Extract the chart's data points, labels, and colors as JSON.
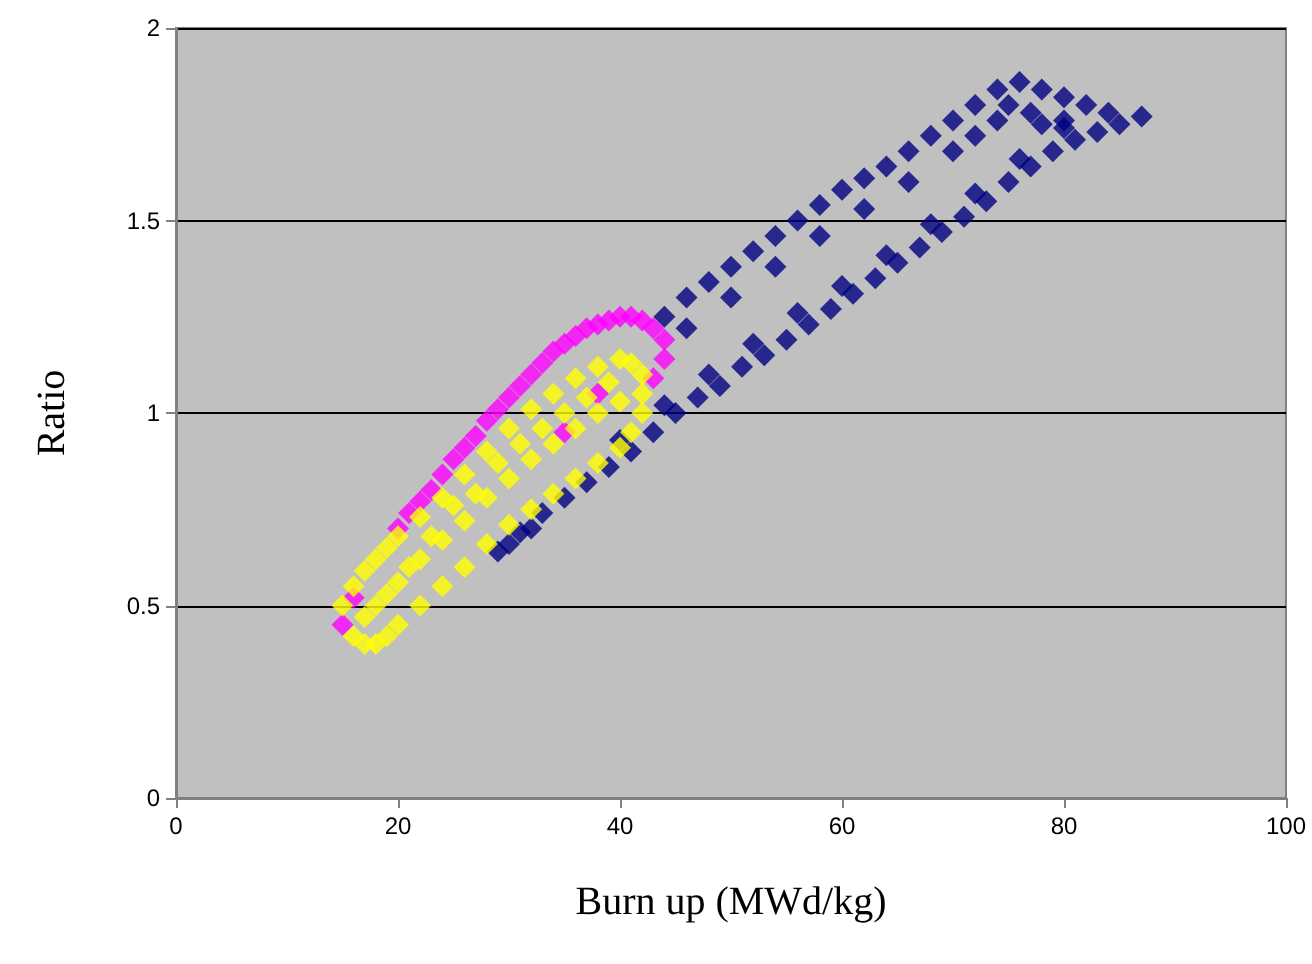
{
  "chart_data": {
    "type": "scatter",
    "xlabel": "Burn up (MWd/kg)",
    "ylabel": "Ratio",
    "xlim": [
      0,
      100
    ],
    "xticks": [
      0,
      20,
      40,
      60,
      80,
      100
    ],
    "ylim": [
      0,
      2
    ],
    "yticks": [
      0,
      0.5,
      1,
      1.5,
      2
    ],
    "grid": "y",
    "marker": "diamond",
    "series": [
      {
        "color": "#000080",
        "x": [
          29,
          30,
          31,
          32,
          33,
          35,
          37,
          39,
          41,
          43,
          45,
          47,
          49,
          51,
          53,
          55,
          57,
          59,
          61,
          63,
          65,
          67,
          69,
          71,
          73,
          75,
          77,
          79,
          81,
          83,
          85,
          87,
          40,
          44,
          48,
          52,
          56,
          60,
          64,
          68,
          72,
          76,
          80,
          44,
          46,
          48,
          50,
          52,
          54,
          56,
          58,
          60,
          62,
          64,
          66,
          68,
          70,
          72,
          74,
          76,
          78,
          80,
          82,
          46,
          50,
          54,
          58,
          62,
          66,
          70,
          74,
          77,
          80,
          84,
          72,
          75,
          78
        ],
        "values": [
          0.64,
          0.66,
          0.69,
          0.7,
          0.74,
          0.78,
          0.82,
          0.86,
          0.9,
          0.95,
          1.0,
          1.04,
          1.07,
          1.12,
          1.15,
          1.19,
          1.23,
          1.27,
          1.31,
          1.35,
          1.39,
          1.43,
          1.47,
          1.51,
          1.55,
          1.6,
          1.64,
          1.68,
          1.71,
          1.73,
          1.75,
          1.77,
          0.93,
          1.02,
          1.1,
          1.18,
          1.26,
          1.33,
          1.41,
          1.49,
          1.57,
          1.66,
          1.74,
          1.25,
          1.3,
          1.34,
          1.38,
          1.42,
          1.46,
          1.5,
          1.54,
          1.58,
          1.61,
          1.64,
          1.68,
          1.72,
          1.76,
          1.8,
          1.84,
          1.86,
          1.84,
          1.82,
          1.8,
          1.22,
          1.3,
          1.38,
          1.46,
          1.53,
          1.6,
          1.68,
          1.76,
          1.78,
          1.76,
          1.78,
          1.72,
          1.8,
          1.75
        ]
      },
      {
        "color": "#ff00ff",
        "x": [
          15,
          16,
          20,
          21,
          22,
          23,
          24,
          25,
          26,
          27,
          28,
          29,
          30,
          31,
          32,
          33,
          34,
          35,
          36,
          37,
          38,
          39,
          40,
          41,
          42,
          43,
          44,
          44,
          43,
          35,
          38
        ],
        "values": [
          0.45,
          0.52,
          0.7,
          0.74,
          0.77,
          0.8,
          0.84,
          0.88,
          0.91,
          0.94,
          0.98,
          1.01,
          1.04,
          1.07,
          1.1,
          1.13,
          1.16,
          1.18,
          1.2,
          1.22,
          1.23,
          1.24,
          1.25,
          1.25,
          1.24,
          1.22,
          1.19,
          1.14,
          1.09,
          0.95,
          1.05
        ]
      },
      {
        "color": "#ffff00",
        "x": [
          15,
          16,
          17,
          18,
          19,
          20,
          22,
          24,
          26,
          28,
          30,
          32,
          34,
          36,
          38,
          40,
          41,
          42,
          42,
          42,
          16,
          17,
          18,
          19,
          20,
          22,
          24,
          26,
          28,
          30,
          32,
          34,
          36,
          38,
          40,
          41,
          18,
          20,
          22,
          24,
          26,
          28,
          30,
          32,
          34,
          36,
          38,
          40,
          17,
          19,
          25,
          29,
          33,
          37,
          21,
          23,
          27,
          31,
          35,
          39
        ],
        "values": [
          0.5,
          0.55,
          0.59,
          0.62,
          0.65,
          0.68,
          0.73,
          0.78,
          0.84,
          0.9,
          0.96,
          1.01,
          1.05,
          1.09,
          1.12,
          1.14,
          1.13,
          1.1,
          1.05,
          1.0,
          0.42,
          0.4,
          0.4,
          0.42,
          0.45,
          0.5,
          0.55,
          0.6,
          0.66,
          0.71,
          0.75,
          0.79,
          0.83,
          0.87,
          0.91,
          0.95,
          0.5,
          0.56,
          0.62,
          0.67,
          0.72,
          0.78,
          0.83,
          0.88,
          0.92,
          0.96,
          1.0,
          1.03,
          0.47,
          0.53,
          0.76,
          0.87,
          0.96,
          1.04,
          0.6,
          0.68,
          0.79,
          0.92,
          1.0,
          1.08
        ]
      }
    ]
  }
}
